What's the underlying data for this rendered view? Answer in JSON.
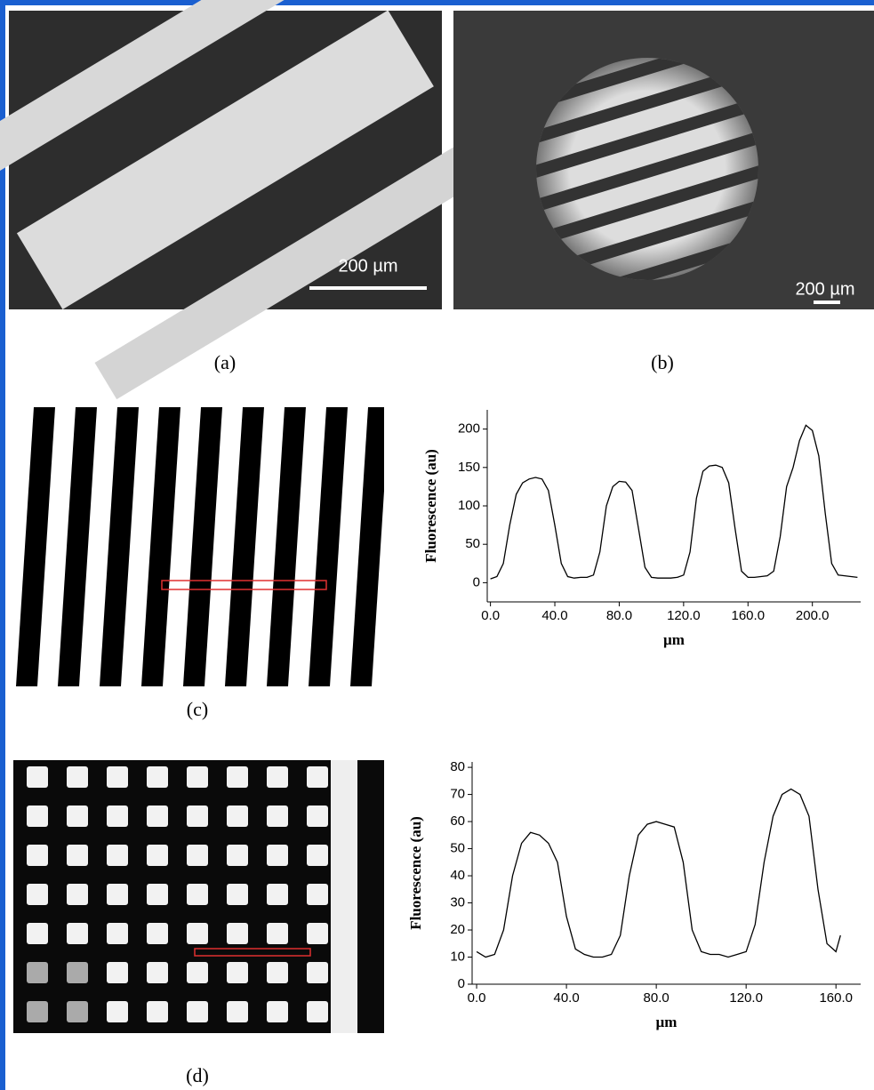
{
  "panels": {
    "a": {
      "label": "(a)",
      "scale_bar": "200 µm"
    },
    "b": {
      "label": "(b)",
      "scale_bar": "200 µm"
    },
    "c": {
      "label": "(c)"
    },
    "d": {
      "label": "(d)"
    }
  },
  "chart_data": [
    {
      "type": "line",
      "color": "#000000",
      "x_label": "µm",
      "y_label": "Fluorescence (au)",
      "x": [
        0,
        4,
        8,
        12,
        16,
        20,
        24,
        28,
        32,
        36,
        40,
        44,
        48,
        52,
        56,
        60,
        64,
        68,
        72,
        76,
        80,
        84,
        88,
        92,
        96,
        100,
        104,
        108,
        112,
        116,
        120,
        124,
        128,
        132,
        136,
        140,
        144,
        148,
        152,
        156,
        160,
        164,
        168,
        172,
        176,
        180,
        184,
        188,
        192,
        196,
        200,
        204,
        208,
        212,
        216,
        220,
        224,
        228
      ],
      "values": [
        5,
        8,
        25,
        75,
        115,
        130,
        135,
        137,
        135,
        120,
        75,
        25,
        8,
        6,
        7,
        7,
        10,
        40,
        100,
        125,
        132,
        131,
        120,
        70,
        20,
        7,
        6,
        6,
        6,
        7,
        10,
        40,
        110,
        145,
        152,
        153,
        150,
        130,
        70,
        15,
        7,
        7,
        8,
        9,
        15,
        60,
        125,
        150,
        185,
        205,
        198,
        165,
        90,
        25,
        10,
        9,
        8,
        7
      ],
      "xlim": [
        -2,
        230
      ],
      "ylim": [
        -25,
        225
      ],
      "xticks": [
        {
          "value": 0,
          "label": "0.0"
        },
        {
          "value": 40,
          "label": "40.0"
        },
        {
          "value": 80,
          "label": "80.0"
        },
        {
          "value": 120,
          "label": "120.0"
        },
        {
          "value": 160,
          "label": "160.0"
        },
        {
          "value": 200,
          "label": "200.0"
        }
      ],
      "yticks": [
        0,
        50,
        100,
        150,
        200
      ]
    },
    {
      "type": "line",
      "color": "#000000",
      "x_label": "µm",
      "y_label": "Fluorescence (au)",
      "x": [
        0,
        4,
        8,
        12,
        16,
        20,
        24,
        28,
        32,
        36,
        40,
        44,
        48,
        52,
        56,
        60,
        64,
        68,
        72,
        76,
        80,
        84,
        88,
        92,
        96,
        100,
        104,
        108,
        112,
        116,
        120,
        124,
        128,
        132,
        136,
        140,
        144,
        148,
        152,
        156,
        160,
        162
      ],
      "values": [
        12,
        10,
        11,
        20,
        40,
        52,
        56,
        55,
        52,
        45,
        25,
        13,
        11,
        10,
        10,
        11,
        18,
        40,
        55,
        59,
        60,
        59,
        58,
        45,
        20,
        12,
        11,
        11,
        10,
        11,
        12,
        22,
        45,
        62,
        70,
        72,
        70,
        62,
        35,
        15,
        12,
        18
      ],
      "xlim": [
        -2,
        171
      ],
      "ylim": [
        0,
        82
      ],
      "xticks": [
        {
          "value": 0,
          "label": "0.0"
        },
        {
          "value": 40,
          "label": "40.0"
        },
        {
          "value": 80,
          "label": "80.0"
        },
        {
          "value": 120,
          "label": "120.0"
        },
        {
          "value": 160,
          "label": "160.0"
        }
      ],
      "yticks": [
        0,
        10,
        20,
        30,
        40,
        50,
        60,
        70,
        80
      ]
    }
  ]
}
